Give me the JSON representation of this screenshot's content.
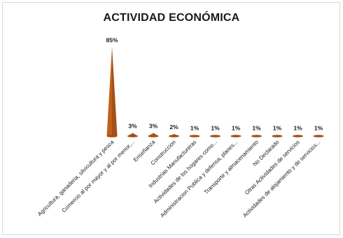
{
  "chart_data": {
    "type": "bar",
    "style": "cone",
    "title": "ACTIVIDAD ECONÓMICA",
    "bar_color": "#c0601b",
    "categories": [
      "Agricultura, ganaderia, silvicultura y pesca",
      "Comercio al por mayor y al por menor,...",
      "Enseñanza",
      "Construccion",
      "Industrias Manufactureras",
      "Actividades de los hogares como...",
      "Administracion Publica y defensa, planes...",
      "Transporte y almacenamiento",
      "No Declarado",
      "Otras Actividades de servicios",
      "Actividades de alojamiento y de servicios..."
    ],
    "values": [
      85,
      3,
      3,
      2,
      1,
      1,
      1,
      1,
      1,
      1,
      1
    ],
    "data_labels": [
      "85%",
      "3%",
      "3%",
      "2%",
      "1%",
      "1%",
      "1%",
      "1%",
      "1%",
      "1%",
      "1%"
    ],
    "ylim": [
      0,
      100
    ],
    "grid": false,
    "legend": "none"
  }
}
